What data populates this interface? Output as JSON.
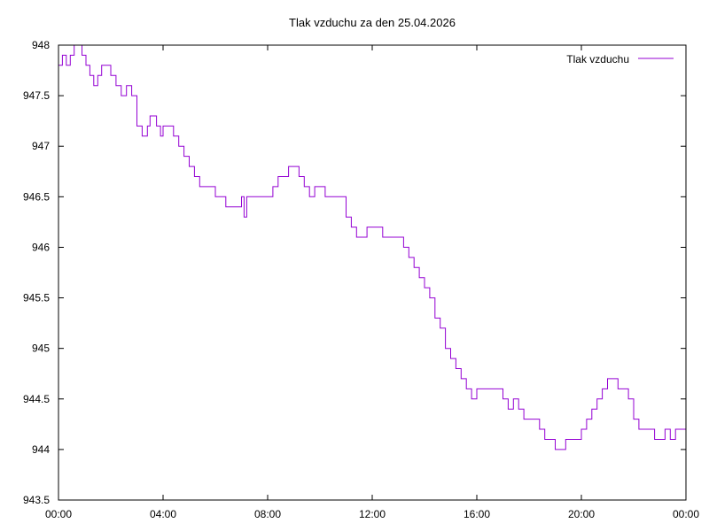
{
  "chart_data": {
    "type": "line",
    "title": "Tlak vzduchu za den 25.04.2026",
    "xlabel": "",
    "ylabel": "",
    "x_ticks": [
      "00:00",
      "04:00",
      "08:00",
      "12:00",
      "16:00",
      "20:00",
      "00:00"
    ],
    "y_ticks": [
      "943.5",
      "944",
      "944.5",
      "945",
      "945.5",
      "946",
      "946.5",
      "947",
      "947.5",
      "948"
    ],
    "xlim_hours": [
      0,
      24
    ],
    "ylim": [
      943.5,
      948
    ],
    "grid": false,
    "legend_position": "top-right",
    "colors": {
      "series": "#9400d3",
      "axis": "#000000",
      "background": "#ffffff"
    },
    "series": [
      {
        "name": "Tlak vzduchu",
        "x_hours": [
          0.0,
          0.15,
          0.3,
          0.45,
          0.6,
          0.75,
          0.9,
          1.05,
          1.2,
          1.35,
          1.5,
          1.65,
          1.8,
          2.0,
          2.2,
          2.4,
          2.6,
          2.8,
          3.0,
          3.2,
          3.4,
          3.5,
          3.6,
          3.75,
          3.9,
          4.0,
          4.2,
          4.4,
          4.6,
          4.8,
          5.0,
          5.2,
          5.4,
          5.6,
          5.8,
          6.0,
          6.2,
          6.4,
          6.6,
          6.8,
          7.0,
          7.1,
          7.2,
          7.4,
          7.6,
          7.8,
          8.0,
          8.2,
          8.4,
          8.6,
          8.8,
          9.0,
          9.2,
          9.4,
          9.6,
          9.8,
          10.0,
          10.2,
          10.4,
          10.6,
          10.8,
          11.0,
          11.2,
          11.4,
          11.6,
          11.8,
          12.0,
          12.2,
          12.4,
          12.6,
          12.8,
          13.0,
          13.2,
          13.4,
          13.6,
          13.8,
          14.0,
          14.2,
          14.4,
          14.6,
          14.8,
          15.0,
          15.2,
          15.4,
          15.6,
          15.8,
          16.0,
          16.2,
          16.4,
          16.6,
          16.8,
          17.0,
          17.2,
          17.4,
          17.6,
          17.8,
          18.0,
          18.2,
          18.4,
          18.6,
          18.8,
          19.0,
          19.2,
          19.4,
          19.6,
          19.8,
          20.0,
          20.2,
          20.4,
          20.6,
          20.8,
          21.0,
          21.2,
          21.4,
          21.6,
          21.8,
          22.0,
          22.2,
          22.4,
          22.6,
          22.8,
          23.0,
          23.2,
          23.4,
          23.6,
          23.8,
          24.0
        ],
        "values": [
          947.8,
          947.9,
          947.8,
          947.9,
          948.0,
          948.0,
          947.9,
          947.8,
          947.7,
          947.6,
          947.7,
          947.8,
          947.8,
          947.7,
          947.6,
          947.5,
          947.6,
          947.5,
          947.2,
          947.1,
          947.2,
          947.3,
          947.3,
          947.2,
          947.1,
          947.2,
          947.2,
          947.1,
          947.0,
          946.9,
          946.8,
          946.7,
          946.6,
          946.6,
          946.6,
          946.5,
          946.5,
          946.4,
          946.4,
          946.4,
          946.5,
          946.3,
          946.5,
          946.5,
          946.5,
          946.5,
          946.5,
          946.6,
          946.7,
          946.7,
          946.8,
          946.8,
          946.7,
          946.6,
          946.5,
          946.6,
          946.6,
          946.5,
          946.5,
          946.5,
          946.5,
          946.3,
          946.2,
          946.1,
          946.1,
          946.2,
          946.2,
          946.2,
          946.1,
          946.1,
          946.1,
          946.1,
          946.0,
          945.9,
          945.8,
          945.7,
          945.6,
          945.5,
          945.3,
          945.2,
          945.0,
          944.9,
          944.8,
          944.7,
          944.6,
          944.5,
          944.6,
          944.6,
          944.6,
          944.6,
          944.6,
          944.5,
          944.4,
          944.5,
          944.4,
          944.3,
          944.3,
          944.3,
          944.2,
          944.1,
          944.1,
          944.0,
          944.0,
          944.1,
          944.1,
          944.1,
          944.2,
          944.3,
          944.4,
          944.5,
          944.6,
          944.7,
          944.7,
          944.6,
          944.6,
          944.5,
          944.3,
          944.2,
          944.2,
          944.2,
          944.1,
          944.1,
          944.2,
          944.1,
          944.2,
          944.2,
          944.2
        ]
      }
    ]
  }
}
